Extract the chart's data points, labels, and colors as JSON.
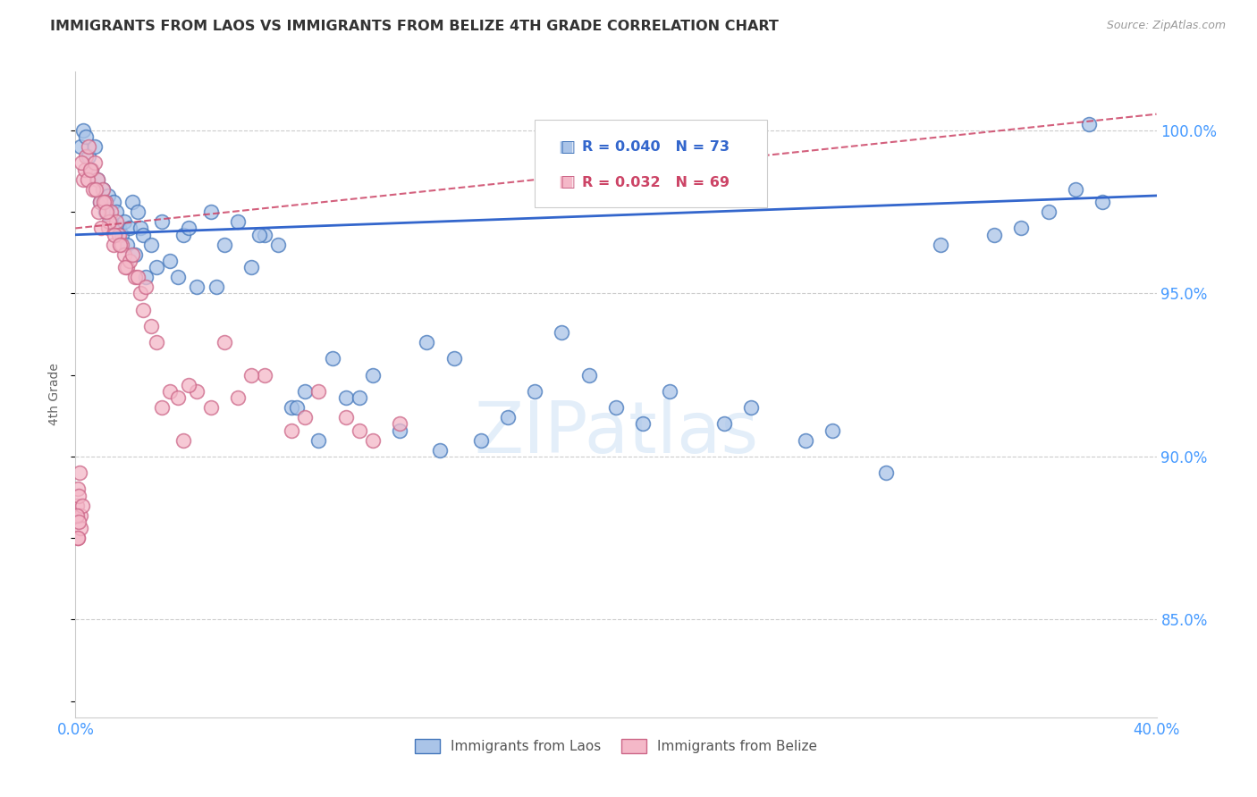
{
  "title": "IMMIGRANTS FROM LAOS VS IMMIGRANTS FROM BELIZE 4TH GRADE CORRELATION CHART",
  "source": "Source: ZipAtlas.com",
  "ylabel": "4th Grade",
  "y_ticks": [
    85.0,
    90.0,
    95.0,
    100.0
  ],
  "y_tick_labels": [
    "85.0%",
    "90.0%",
    "95.0%",
    "100.0%"
  ],
  "x_min": 0.0,
  "x_max": 40.0,
  "y_min": 82.0,
  "y_max": 101.8,
  "legend_laos_R": "0.040",
  "legend_laos_N": "73",
  "legend_belize_R": "0.032",
  "legend_belize_N": "69",
  "color_laos_fill": "#aac4e8",
  "color_laos_edge": "#4477bb",
  "color_belize_fill": "#f4b8c8",
  "color_belize_edge": "#cc6688",
  "color_laos_line": "#3366cc",
  "color_belize_line": "#cc4466",
  "color_axis_labels": "#4499ff",
  "watermark": "ZIPatlas",
  "laos_x": [
    0.2,
    0.3,
    0.4,
    0.5,
    0.6,
    0.7,
    0.8,
    0.9,
    1.0,
    1.1,
    1.2,
    1.3,
    1.4,
    1.5,
    1.6,
    1.7,
    1.8,
    1.9,
    2.0,
    2.1,
    2.2,
    2.3,
    2.4,
    2.5,
    2.6,
    2.8,
    3.0,
    3.2,
    3.5,
    3.8,
    4.0,
    4.2,
    4.5,
    5.0,
    5.5,
    6.0,
    6.5,
    7.0,
    7.5,
    8.0,
    8.5,
    9.0,
    9.5,
    10.0,
    11.0,
    12.0,
    13.0,
    14.0,
    15.0,
    16.0,
    17.0,
    18.0,
    19.0,
    20.0,
    22.0,
    24.0,
    25.0,
    27.0,
    28.0,
    30.0,
    32.0,
    34.0,
    35.0,
    36.0,
    37.0,
    37.5,
    38.0,
    5.2,
    6.8,
    8.2,
    10.5,
    13.5,
    21.0
  ],
  "laos_y": [
    99.5,
    100.0,
    99.8,
    99.2,
    98.8,
    99.5,
    98.5,
    97.8,
    98.2,
    97.5,
    98.0,
    97.2,
    97.8,
    97.5,
    97.0,
    96.8,
    97.2,
    96.5,
    97.0,
    97.8,
    96.2,
    97.5,
    97.0,
    96.8,
    95.5,
    96.5,
    95.8,
    97.2,
    96.0,
    95.5,
    96.8,
    97.0,
    95.2,
    97.5,
    96.5,
    97.2,
    95.8,
    96.8,
    96.5,
    91.5,
    92.0,
    90.5,
    93.0,
    91.8,
    92.5,
    90.8,
    93.5,
    93.0,
    90.5,
    91.2,
    92.0,
    93.8,
    92.5,
    91.5,
    92.0,
    91.0,
    91.5,
    90.5,
    90.8,
    89.5,
    96.5,
    96.8,
    97.0,
    97.5,
    98.2,
    100.2,
    97.8,
    95.2,
    96.8,
    91.5,
    91.8,
    90.2,
    91.0
  ],
  "belize_x": [
    0.05,
    0.08,
    0.1,
    0.12,
    0.15,
    0.18,
    0.2,
    0.25,
    0.3,
    0.35,
    0.4,
    0.5,
    0.6,
    0.7,
    0.8,
    0.9,
    1.0,
    1.1,
    1.2,
    1.3,
    1.4,
    1.5,
    1.6,
    1.7,
    1.8,
    1.9,
    2.0,
    2.2,
    2.4,
    2.5,
    2.8,
    3.0,
    3.2,
    3.5,
    4.0,
    4.5,
    5.0,
    5.5,
    6.0,
    7.0,
    8.0,
    9.0,
    10.0,
    11.0,
    12.0,
    0.06,
    0.09,
    0.13,
    0.22,
    0.45,
    0.65,
    0.85,
    1.05,
    1.25,
    1.45,
    1.65,
    1.85,
    2.1,
    2.3,
    2.6,
    3.8,
    4.2,
    6.5,
    8.5,
    10.5,
    1.15,
    0.55,
    0.75,
    0.95
  ],
  "belize_y": [
    88.5,
    89.0,
    87.5,
    88.8,
    89.5,
    88.2,
    87.8,
    88.5,
    98.5,
    98.8,
    99.2,
    99.5,
    98.8,
    99.0,
    98.5,
    97.8,
    98.2,
    97.8,
    97.0,
    97.5,
    96.5,
    97.2,
    96.8,
    96.5,
    96.2,
    95.8,
    96.0,
    95.5,
    95.0,
    94.5,
    94.0,
    93.5,
    91.5,
    92.0,
    90.5,
    92.0,
    91.5,
    93.5,
    91.8,
    92.5,
    90.8,
    92.0,
    91.2,
    90.5,
    91.0,
    88.2,
    87.5,
    88.0,
    99.0,
    98.5,
    98.2,
    97.5,
    97.8,
    97.2,
    96.8,
    96.5,
    95.8,
    96.2,
    95.5,
    95.2,
    91.8,
    92.2,
    92.5,
    91.2,
    90.8,
    97.5,
    98.8,
    98.2,
    97.0
  ],
  "laos_trend_x0": 0.0,
  "laos_trend_y0": 96.8,
  "laos_trend_x1": 40.0,
  "laos_trend_y1": 98.0,
  "belize_trend_x0": 0.0,
  "belize_trend_y0": 97.0,
  "belize_trend_x1": 40.0,
  "belize_trend_y1": 100.5
}
